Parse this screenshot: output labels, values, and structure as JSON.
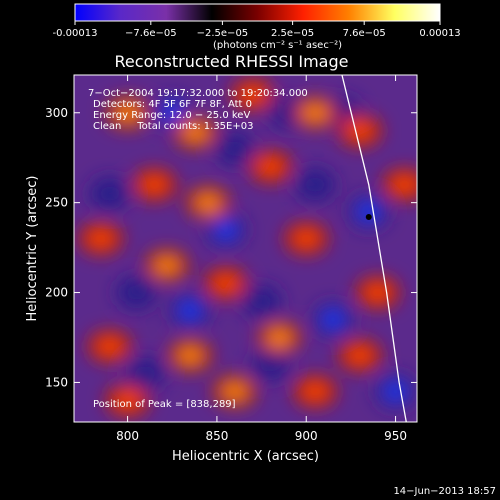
{
  "chart_data": {
    "type": "heatmap",
    "title": "Reconstructed RHESSI Image",
    "xlabel": "Heliocentric X (arcsec)",
    "ylabel": "Heliocentric Y (arcsec)",
    "xlim": [
      770,
      962
    ],
    "ylim": [
      128,
      321
    ],
    "xticks": [
      800,
      850,
      900,
      950
    ],
    "yticks": [
      150,
      200,
      250,
      300
    ],
    "colorbar": {
      "min": -0.00013,
      "max": 0.00013,
      "tick_labels": [
        "-0.00013",
        "−7.6e−05",
        "−2.5e−05",
        "2.5e−05",
        "7.6e−05",
        "0.00013"
      ],
      "tick_values": [
        -0.00013,
        -7.6e-05,
        -2.5e-05,
        2.5e-05,
        7.6e-05,
        0.00013
      ],
      "units": "(photons cm⁻² s⁻¹ asec⁻²)",
      "colors": [
        "#0000ff",
        "#5a28c8",
        "#7a30a8",
        "#000000",
        "#7a0000",
        "#ff2000",
        "#ff8000",
        "#ffff60",
        "#ffffff"
      ]
    },
    "annotations": {
      "time": "7−Oct−2004 19:17:32.000 to 19:20:34.000",
      "detectors": "Detectors: 4F 5F 6F 7F 8F, Att 0",
      "energy": "Energy Range: 12.0 − 25.0 keV",
      "clean": "Clean     Total counts: 1.35E+03",
      "peak": "Position of Peak = [838,289]"
    },
    "peak_position": [
      838,
      289
    ],
    "marker": [
      935,
      242
    ],
    "limb_curve": [
      [
        920,
        321
      ],
      [
        935,
        260
      ],
      [
        945,
        200
      ],
      [
        952,
        150
      ],
      [
        956,
        128
      ]
    ],
    "hot_blobs": [
      {
        "x": 800,
        "y": 300,
        "v": 1.0
      },
      {
        "x": 838,
        "y": 289,
        "v": 1.0
      },
      {
        "x": 870,
        "y": 310,
        "v": 0.8
      },
      {
        "x": 905,
        "y": 300,
        "v": 0.9
      },
      {
        "x": 785,
        "y": 230,
        "v": 0.8
      },
      {
        "x": 815,
        "y": 260,
        "v": 0.8
      },
      {
        "x": 845,
        "y": 250,
        "v": 0.9
      },
      {
        "x": 880,
        "y": 270,
        "v": 0.8
      },
      {
        "x": 930,
        "y": 290,
        "v": 0.7
      },
      {
        "x": 790,
        "y": 170,
        "v": 0.8
      },
      {
        "x": 822,
        "y": 215,
        "v": 0.9
      },
      {
        "x": 855,
        "y": 205,
        "v": 0.7
      },
      {
        "x": 900,
        "y": 230,
        "v": 0.8
      },
      {
        "x": 885,
        "y": 175,
        "v": 0.9
      },
      {
        "x": 835,
        "y": 165,
        "v": 0.9
      },
      {
        "x": 860,
        "y": 145,
        "v": 1.0
      },
      {
        "x": 905,
        "y": 145,
        "v": 0.8
      },
      {
        "x": 940,
        "y": 200,
        "v": 0.7
      },
      {
        "x": 955,
        "y": 260,
        "v": 0.8
      },
      {
        "x": 800,
        "y": 140,
        "v": 0.7
      },
      {
        "x": 930,
        "y": 165,
        "v": 0.8
      }
    ],
    "cold_blobs": [
      {
        "x": 825,
        "y": 300,
        "v": 0.8
      },
      {
        "x": 860,
        "y": 280,
        "v": 0.7
      },
      {
        "x": 890,
        "y": 300,
        "v": 0.6
      },
      {
        "x": 855,
        "y": 235,
        "v": 1.0
      },
      {
        "x": 805,
        "y": 200,
        "v": 0.7
      },
      {
        "x": 835,
        "y": 190,
        "v": 0.8
      },
      {
        "x": 875,
        "y": 195,
        "v": 0.6
      },
      {
        "x": 915,
        "y": 185,
        "v": 0.8
      },
      {
        "x": 935,
        "y": 245,
        "v": 1.0
      },
      {
        "x": 905,
        "y": 260,
        "v": 0.7
      },
      {
        "x": 950,
        "y": 145,
        "v": 0.9
      },
      {
        "x": 880,
        "y": 160,
        "v": 0.7
      },
      {
        "x": 920,
        "y": 300,
        "v": 0.7
      },
      {
        "x": 790,
        "y": 255,
        "v": 0.6
      },
      {
        "x": 810,
        "y": 155,
        "v": 0.6
      }
    ]
  },
  "footer": {
    "date": "14−Jun−2013 18:57"
  }
}
